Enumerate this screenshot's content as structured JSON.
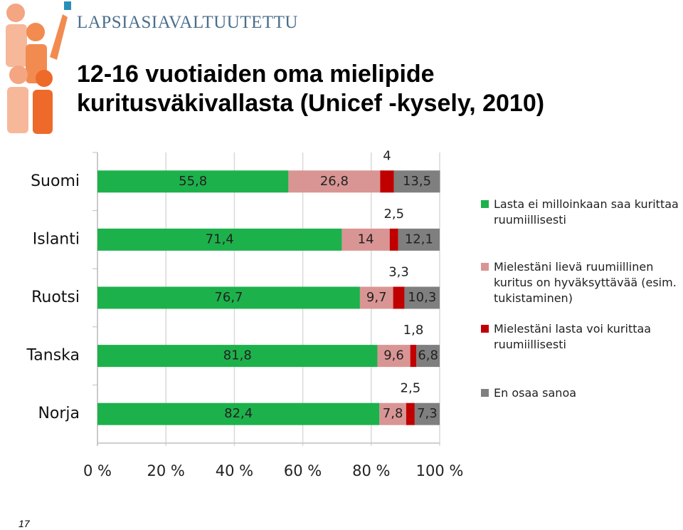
{
  "header": "LAPSIASIAVALTUUTETTU",
  "page_number": "17",
  "chart_data": {
    "type": "stacked-bar-horizontal",
    "title": "12-16 vuotiaiden oma mielipide kuritusväkivallasta (Unicef -kysely, 2010)",
    "categories": [
      "Suomi",
      "Islanti",
      "Ruotsi",
      "Tanska",
      "Norja"
    ],
    "series": [
      {
        "name": "Lasta ei milloinkaan saa kurittaa ruumiillisesti",
        "color": "#1db14b",
        "values": [
          55.8,
          71.4,
          76.7,
          81.8,
          82.4
        ],
        "value_labels": [
          "55,8",
          "71,4",
          "76,7",
          "81,8",
          "82,4"
        ]
      },
      {
        "name": "Mielestäni lievä ruumiillinen kuritus on hyväksyttävää (esim. tukistaminen)",
        "color": "#d99594",
        "values": [
          26.8,
          14,
          9.7,
          9.6,
          7.8
        ],
        "value_labels": [
          "26,8",
          "14",
          "9,7",
          "9,6",
          "7,8"
        ]
      },
      {
        "name": "Mielestäni lasta voi kurittaa ruumiillisesti",
        "color": "#c00000",
        "values": [
          4,
          2.5,
          3.3,
          1.8,
          2.5
        ],
        "value_labels": [
          "4",
          "2,5",
          "3,3",
          "1,8",
          "2,5"
        ]
      },
      {
        "name": "En osaa sanoa",
        "color": "#7f7f7f",
        "values": [
          13.5,
          12.1,
          10.3,
          6.8,
          7.3
        ],
        "value_labels": [
          "13,5",
          "12,1",
          "10,3",
          "6,8",
          "7,3"
        ]
      }
    ],
    "xlim": [
      0,
      100
    ],
    "xticks": [
      {
        "value": 0,
        "label": "0 %"
      },
      {
        "value": 20,
        "label": "20 %"
      },
      {
        "value": 40,
        "label": "40 %"
      },
      {
        "value": 60,
        "label": "60 %"
      },
      {
        "value": 80,
        "label": "80 %"
      },
      {
        "value": 100,
        "label": "100 %"
      }
    ],
    "grid": true
  }
}
